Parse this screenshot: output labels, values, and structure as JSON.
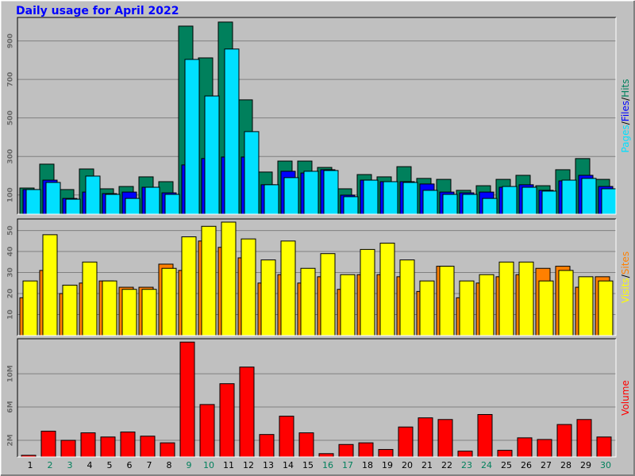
{
  "chart_data": [
    {
      "type": "bar",
      "title": "Daily usage for April 2022",
      "legend_separator": "/",
      "ylim": [
        0,
        1022
      ],
      "yticks": [
        100,
        300,
        500,
        700,
        900
      ],
      "grid": true,
      "series": [
        {
          "name": "Pages",
          "color": "#00e0ff",
          "values": [
            128,
            165,
            78,
            198,
            103,
            82,
            140,
            103,
            804,
            614,
            858,
            429,
            153,
            190,
            223,
            227,
            91,
            177,
            169,
            165,
            124,
            103,
            103,
            82,
            144,
            140,
            120,
            177,
            186,
            132
          ]
        },
        {
          "name": "Files",
          "color": "#0000ff",
          "values": [
            128,
            177,
            82,
            115,
            107,
            115,
            140,
            111,
            256,
            289,
            297,
            297,
            153,
            223,
            214,
            231,
            99,
            177,
            169,
            169,
            157,
            115,
            111,
            115,
            140,
            153,
            124,
            173,
            202,
            144
          ]
        },
        {
          "name": "Hits",
          "color": "#00805c",
          "values": [
            136,
            260,
            128,
            235,
            132,
            144,
            194,
            169,
            977,
            812,
            998,
            594,
            219,
            276,
            276,
            243,
            132,
            206,
            194,
            247,
            186,
            181,
            124,
            148,
            181,
            202,
            148,
            231,
            289,
            181
          ]
        }
      ]
    },
    {
      "type": "bar",
      "legend_separator": "/",
      "ylim": [
        0,
        55.5
      ],
      "yticks": [
        10,
        20,
        30,
        40,
        50
      ],
      "grid": true,
      "series": [
        {
          "name": "Visits",
          "color": "#ffff00",
          "values": [
            26,
            48,
            24,
            35,
            26,
            22,
            22,
            32,
            47,
            52,
            54,
            46,
            36,
            45,
            32,
            39,
            29,
            41,
            44,
            36,
            26,
            33,
            26,
            29,
            35,
            35,
            26,
            31,
            28,
            26
          ]
        },
        {
          "name": "Sites",
          "color": "#ff8000",
          "values": [
            18,
            31,
            20,
            25,
            26,
            23,
            23,
            34,
            31,
            45,
            42,
            37,
            25,
            29,
            25,
            28,
            22,
            29,
            29,
            28,
            21,
            33,
            18,
            25,
            28,
            29,
            32,
            33,
            23,
            28
          ]
        }
      ]
    },
    {
      "type": "bar",
      "ylim": [
        0,
        14.2
      ],
      "yticks": [
        {
          "value": 2,
          "label": "2M"
        },
        {
          "value": 6,
          "label": "6M"
        },
        {
          "value": 10,
          "label": "10M"
        }
      ],
      "grid": true,
      "categories": [
        "1",
        "2",
        "3",
        "4",
        "5",
        "6",
        "7",
        "8",
        "9",
        "10",
        "11",
        "12",
        "13",
        "14",
        "15",
        "16",
        "17",
        "18",
        "19",
        "20",
        "21",
        "22",
        "23",
        "24",
        "25",
        "26",
        "27",
        "28",
        "29",
        "30"
      ],
      "category_colors": [
        "#000000",
        "#00805c",
        "#00805c",
        "#000000",
        "#000000",
        "#000000",
        "#000000",
        "#000000",
        "#00805c",
        "#00805c",
        "#000000",
        "#000000",
        "#000000",
        "#000000",
        "#000000",
        "#00805c",
        "#00805c",
        "#000000",
        "#000000",
        "#000000",
        "#000000",
        "#000000",
        "#00805c",
        "#00805c",
        "#000000",
        "#000000",
        "#000000",
        "#000000",
        "#000000",
        "#00805c"
      ],
      "series": [
        {
          "name": "Volume",
          "color": "#ff0000",
          "values": [
            0.2,
            3.1,
            2.0,
            2.9,
            2.4,
            3.0,
            2.5,
            1.7,
            13.8,
            6.3,
            8.8,
            10.8,
            2.7,
            4.9,
            2.9,
            0.4,
            1.5,
            1.7,
            0.9,
            3.6,
            4.7,
            4.5,
            0.7,
            5.1,
            0.8,
            2.3,
            2.1,
            3.9,
            4.5,
            2.4
          ]
        }
      ]
    }
  ]
}
